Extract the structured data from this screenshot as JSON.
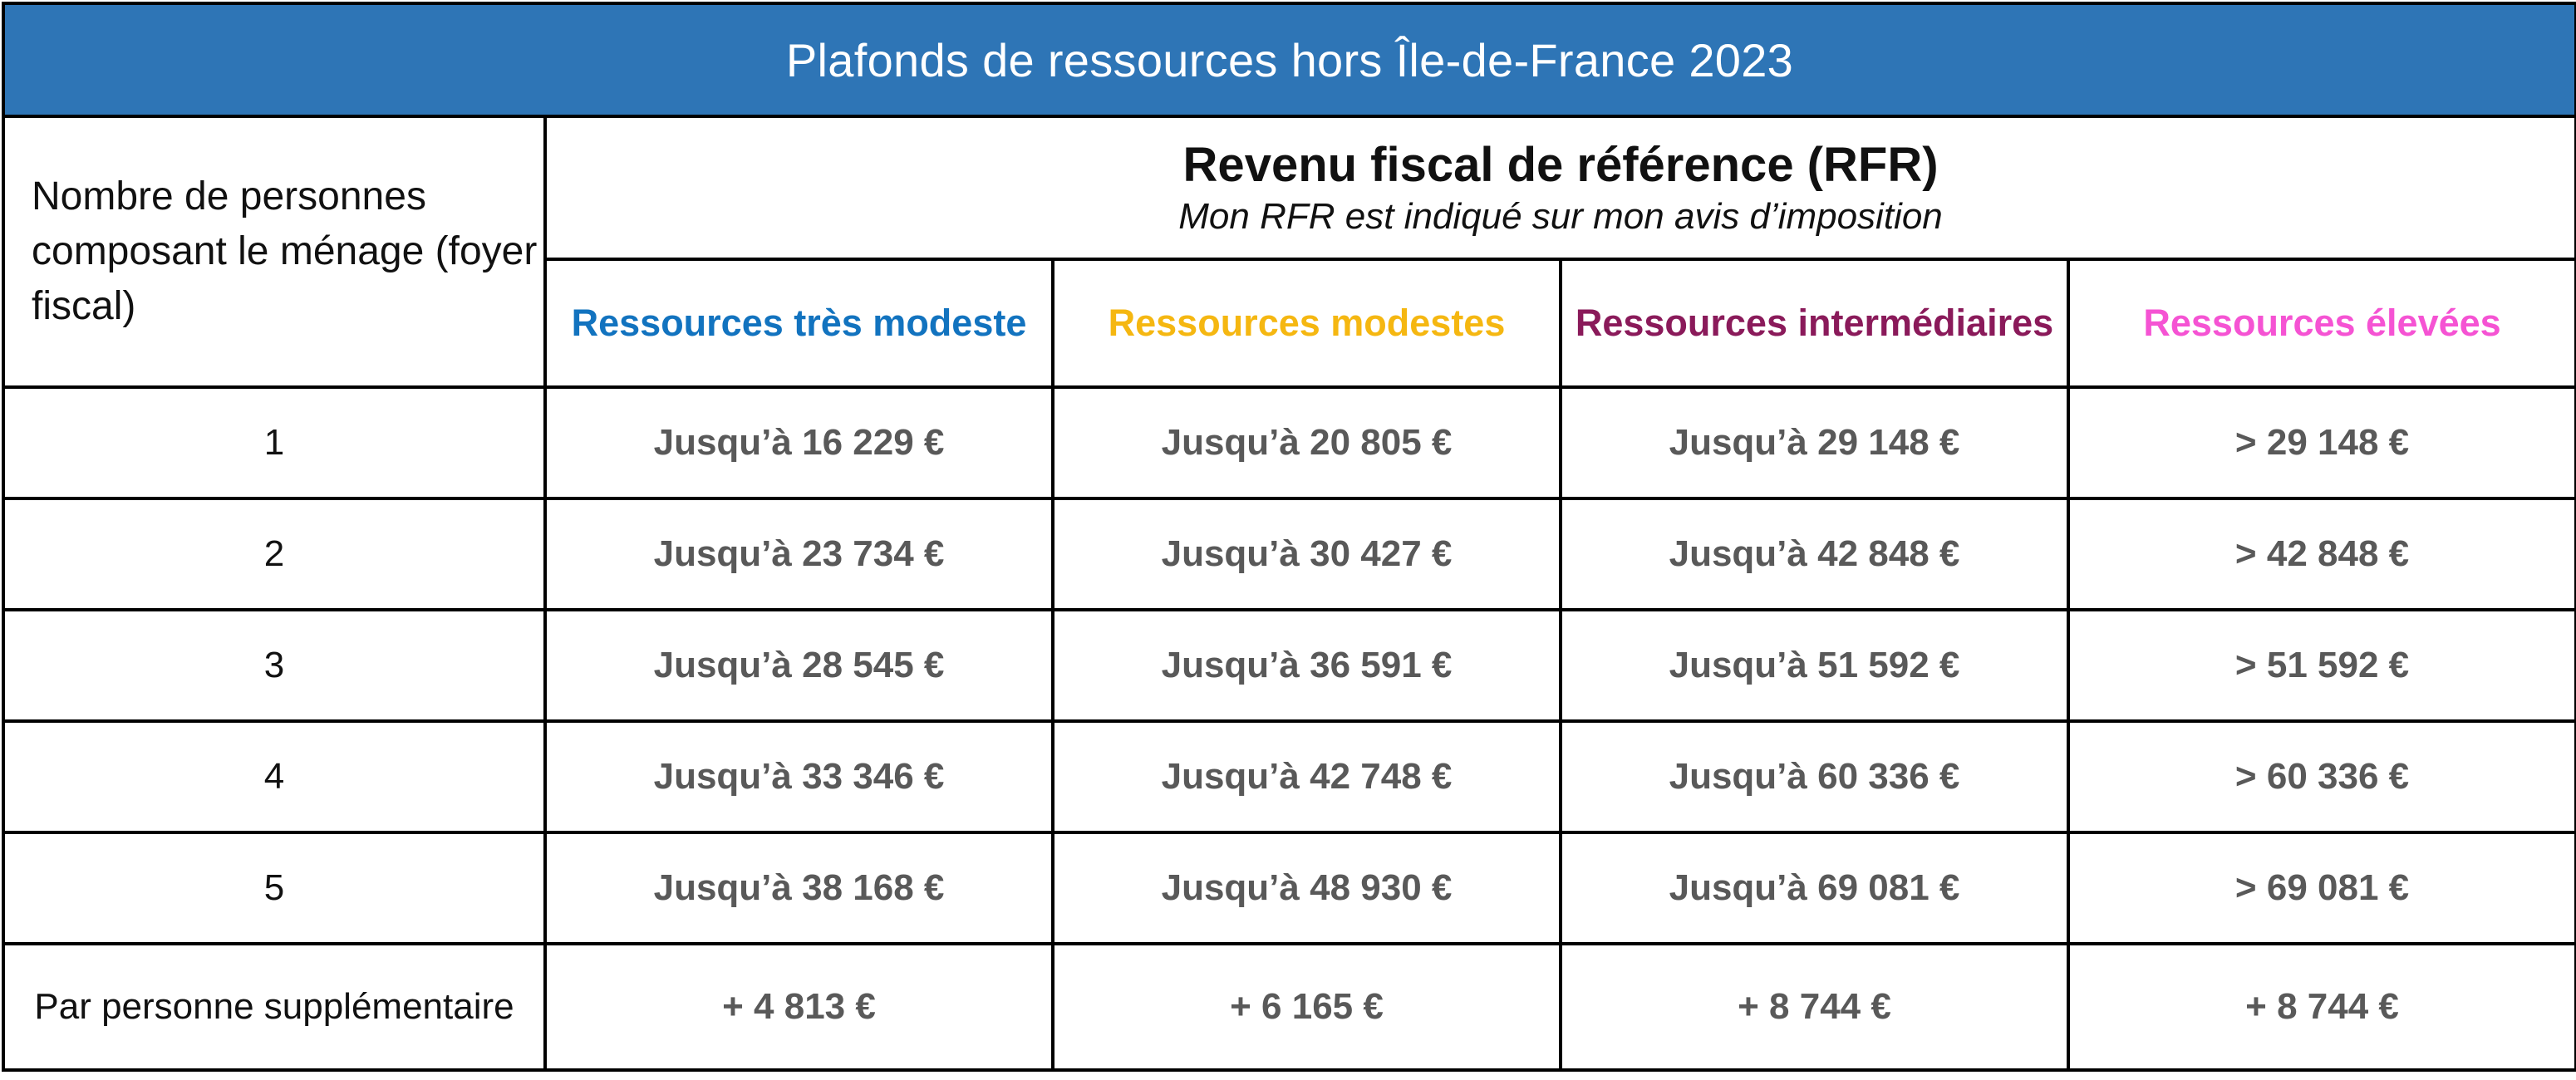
{
  "title": "Plafonds de ressources hors Île-de-France 2023",
  "header": {
    "people_label": "Nombre de personnes composant le ménage (foyer fiscal)",
    "rfr_title": "Revenu fiscal de référence (RFR)",
    "rfr_subtitle": "Mon RFR est indiqué sur mon avis d’imposition"
  },
  "categories": [
    {
      "label": "Ressources très modeste",
      "color": "#1273bf"
    },
    {
      "label": "Ressources modestes",
      "color": "#f5b711"
    },
    {
      "label": "Ressources intermédiaires",
      "color": "#8a1a5a"
    },
    {
      "label": "Ressources élevées",
      "color": "#f553d3"
    }
  ],
  "rows": [
    {
      "count": "1",
      "values": [
        "Jusqu’à 16 229 €",
        "Jusqu’à 20 805 €",
        "Jusqu’à 29 148 €",
        "> 29 148 €"
      ]
    },
    {
      "count": "2",
      "values": [
        "Jusqu’à 23 734 €",
        "Jusqu’à 30 427 €",
        "Jusqu’à 42 848 €",
        "> 42 848 €"
      ]
    },
    {
      "count": "3",
      "values": [
        "Jusqu’à 28 545 €",
        "Jusqu’à 36 591 €",
        "Jusqu’à 51 592 €",
        "> 51 592 €"
      ]
    },
    {
      "count": "4",
      "values": [
        "Jusqu’à 33 346 €",
        "Jusqu’à 42 748 €",
        "Jusqu’à 60 336 €",
        "> 60 336 €"
      ]
    },
    {
      "count": "5",
      "values": [
        "Jusqu’à 38 168 €",
        "Jusqu’à 48 930 €",
        "Jusqu’à 69 081 €",
        "> 69 081 €"
      ]
    },
    {
      "count": "Par personne supplémentaire",
      "values": [
        "+ 4 813 €",
        "+ 6 165 €",
        "+ 8 744 €",
        "+ 8 744 €"
      ]
    }
  ],
  "colors": {
    "title_background": "#2e75b6",
    "title_text": "#ffffff",
    "value_text": "#595959",
    "border": "#000000"
  }
}
